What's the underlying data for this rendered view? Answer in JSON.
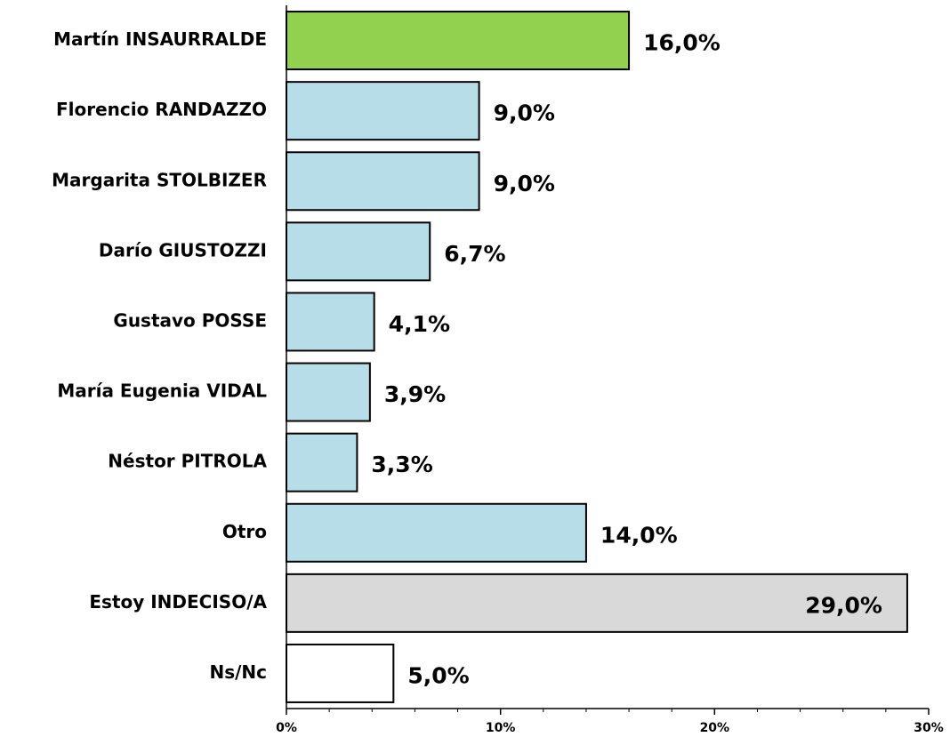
{
  "chart_data": {
    "type": "hbar",
    "categories": [
      "Martín INSAURRALDE",
      "Florencio RANDAZZO",
      "Margarita STOLBIZER",
      "Darío GIUSTOZZI",
      "Gustavo POSSE",
      "María Eugenia VIDAL",
      "Néstor PITROLA",
      "Otro",
      "Estoy INDECISO/A",
      "Ns/Nc"
    ],
    "values": [
      16.0,
      9.0,
      9.0,
      6.7,
      4.1,
      3.9,
      3.3,
      14.0,
      29.0,
      5.0
    ],
    "value_labels": [
      "16,0%",
      "9,0%",
      "9,0%",
      "6,7%",
      "4,1%",
      "3,9%",
      "3,3%",
      "14,0%",
      "29,0%",
      "5,0%"
    ],
    "colors": [
      "#92d050",
      "#b7dde8",
      "#b7dde8",
      "#b7dde8",
      "#b7dde8",
      "#b7dde8",
      "#b7dde8",
      "#b7dde8",
      "#d9d9d9",
      "#ffffff"
    ],
    "xlim": [
      0,
      30
    ],
    "xticks": [
      {
        "value": 0,
        "label": "0%"
      },
      {
        "value": 10,
        "label": "10%"
      },
      {
        "value": 20,
        "label": "20%"
      },
      {
        "value": 30,
        "label": "30%"
      }
    ],
    "xminorticks": [
      2,
      4,
      6,
      8,
      12,
      14,
      16,
      18,
      22,
      24,
      26,
      28
    ]
  }
}
